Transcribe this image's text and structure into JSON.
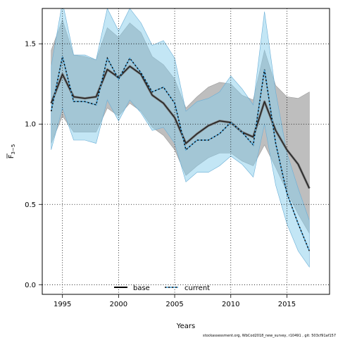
{
  "chart_data": {
    "type": "line",
    "title": "",
    "xlabel": "Years",
    "ylabel_main": "F",
    "ylabel_sub": "3−5",
    "xlim": [
      1993.2,
      2018.8
    ],
    "ylim": [
      -0.06,
      1.72
    ],
    "x_ticks": [
      1995,
      2000,
      2005,
      2010,
      2015
    ],
    "y_ticks": [
      0.0,
      0.5,
      1.0,
      1.5
    ],
    "y_tick_labels": [
      "0.0",
      "0.5",
      "1.0",
      "1.5"
    ],
    "x_tick_labels": [
      "1995",
      "2000",
      "2005",
      "2010",
      "2015"
    ],
    "grid": true,
    "legend_position": "bottom",
    "series": [
      {
        "name": "base",
        "color": "#000000",
        "band_color": "#bebebe",
        "line_style": "solid",
        "x": [
          1994,
          1995,
          1996,
          1997,
          1998,
          1999,
          2000,
          2001,
          2002,
          2003,
          2004,
          2005,
          2006,
          2007,
          2008,
          2009,
          2010,
          2011,
          2012,
          2013,
          2014,
          2015,
          2016,
          2017
        ],
        "values": [
          1.13,
          1.31,
          1.17,
          1.16,
          1.17,
          1.34,
          1.29,
          1.36,
          1.31,
          1.18,
          1.13,
          1.04,
          0.88,
          0.94,
          0.99,
          1.02,
          1.01,
          0.95,
          0.92,
          1.14,
          0.96,
          0.84,
          0.75,
          0.6
        ],
        "lower": [
          0.88,
          1.05,
          0.95,
          0.95,
          0.95,
          1.1,
          1.05,
          1.13,
          1.08,
          0.98,
          0.93,
          0.84,
          0.68,
          0.74,
          0.79,
          0.82,
          0.82,
          0.77,
          0.74,
          0.87,
          0.73,
          0.58,
          0.44,
          0.32
        ],
        "upper": [
          1.46,
          1.65,
          1.43,
          1.42,
          1.4,
          1.6,
          1.54,
          1.63,
          1.57,
          1.42,
          1.37,
          1.28,
          1.1,
          1.17,
          1.23,
          1.26,
          1.25,
          1.18,
          1.15,
          1.46,
          1.24,
          1.17,
          1.16,
          1.2
        ]
      },
      {
        "name": "current",
        "color": "#000000",
        "band_color": "#87ceeb",
        "line_style": "dashed",
        "x": [
          1994,
          1995,
          1996,
          1997,
          1998,
          1999,
          2000,
          2001,
          2002,
          2003,
          2004,
          2005,
          2006,
          2007,
          2008,
          2009,
          2010,
          2011,
          2012,
          2013,
          2014,
          2015,
          2016,
          2017
        ],
        "values": [
          1.08,
          1.42,
          1.14,
          1.14,
          1.12,
          1.41,
          1.28,
          1.41,
          1.32,
          1.2,
          1.23,
          1.13,
          0.84,
          0.9,
          0.9,
          0.94,
          1.01,
          0.95,
          0.87,
          1.34,
          0.88,
          0.57,
          0.38,
          0.21
        ],
        "lower": [
          0.84,
          1.1,
          0.9,
          0.9,
          0.88,
          1.15,
          1.02,
          1.15,
          1.07,
          0.96,
          0.98,
          0.88,
          0.64,
          0.7,
          0.7,
          0.74,
          0.8,
          0.75,
          0.67,
          1.0,
          0.62,
          0.38,
          0.21,
          0.11
        ],
        "upper": [
          1.36,
          1.76,
          1.43,
          1.43,
          1.4,
          1.72,
          1.58,
          1.72,
          1.63,
          1.49,
          1.52,
          1.41,
          1.08,
          1.14,
          1.16,
          1.2,
          1.3,
          1.22,
          1.12,
          1.7,
          1.2,
          0.82,
          0.6,
          0.4
        ]
      }
    ],
    "footnote": "stockassessment.org, WbCod2018_new_survey, r10491 , git: 503cf91af157"
  }
}
